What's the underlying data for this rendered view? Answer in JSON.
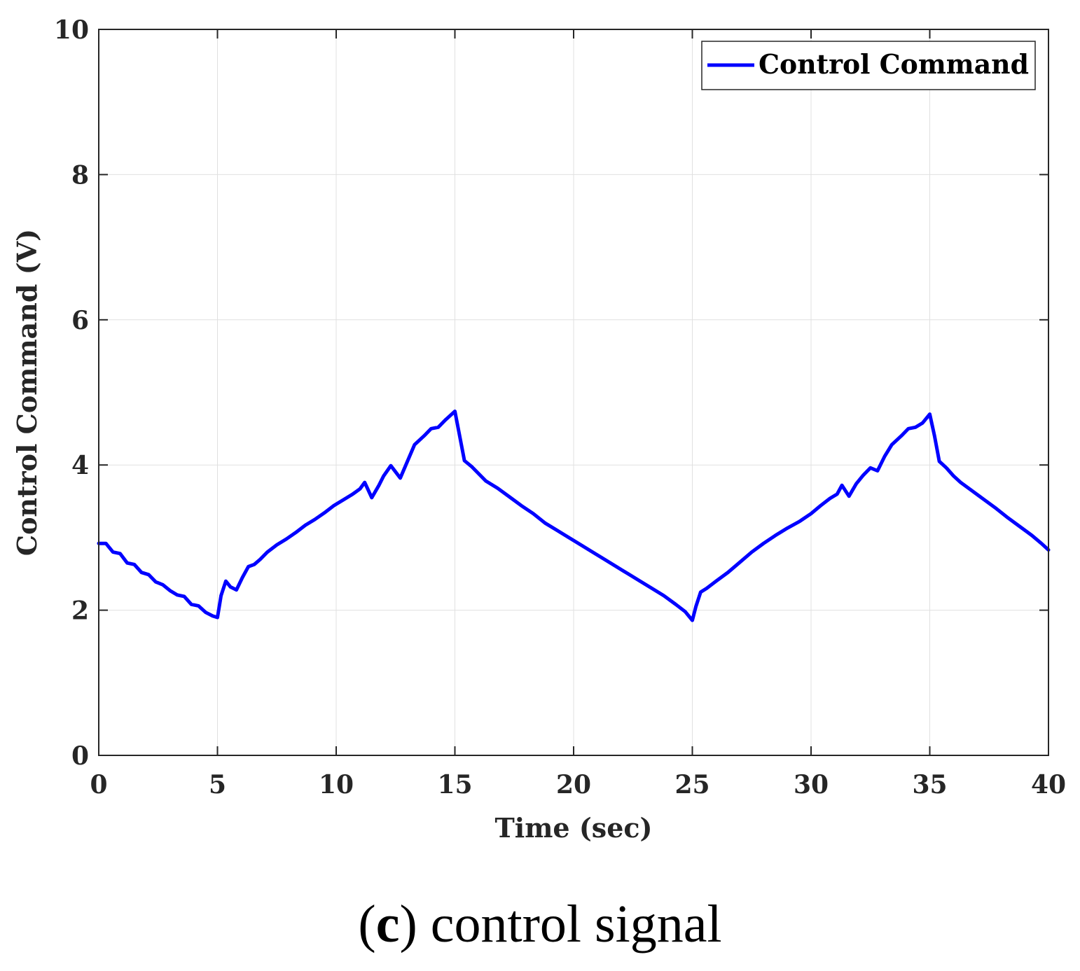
{
  "chart_data": {
    "type": "line",
    "title": "",
    "xlabel": "Time (sec)",
    "ylabel": "Control Command (V)",
    "xlim": [
      0,
      40
    ],
    "ylim": [
      0,
      10
    ],
    "xticks": [
      0,
      5,
      10,
      15,
      20,
      25,
      30,
      35,
      40
    ],
    "yticks": [
      0,
      2,
      4,
      6,
      8,
      10
    ],
    "grid": true,
    "legend": {
      "position": "top-right",
      "entries": [
        "Control Command"
      ]
    },
    "series": [
      {
        "name": "Control Command",
        "color": "#0000ff",
        "x": [
          0,
          0.3,
          0.6,
          0.9,
          1.2,
          1.5,
          1.8,
          2.1,
          2.4,
          2.7,
          3.0,
          3.3,
          3.6,
          3.9,
          4.2,
          4.5,
          4.8,
          5.0,
          5.15,
          5.35,
          5.55,
          5.8,
          6.05,
          6.3,
          6.55,
          6.8,
          7.1,
          7.5,
          7.9,
          8.3,
          8.7,
          9.1,
          9.5,
          9.9,
          10.3,
          10.7,
          11.0,
          11.2,
          11.5,
          11.8,
          12.0,
          12.3,
          12.7,
          13.0,
          13.3,
          13.7,
          14.0,
          14.3,
          14.6,
          15.0,
          15.2,
          15.4,
          15.7,
          16.0,
          16.3,
          16.8,
          17.3,
          17.8,
          18.3,
          18.8,
          19.3,
          19.8,
          20.3,
          20.8,
          21.3,
          21.8,
          22.3,
          22.8,
          23.3,
          23.8,
          24.3,
          24.7,
          25.0,
          25.15,
          25.35,
          25.6,
          26.0,
          26.5,
          27.0,
          27.5,
          28.0,
          28.5,
          29.0,
          29.5,
          30.0,
          30.4,
          30.8,
          31.1,
          31.3,
          31.6,
          31.9,
          32.2,
          32.5,
          32.8,
          33.1,
          33.4,
          33.8,
          34.1,
          34.4,
          34.7,
          35.0,
          35.2,
          35.4,
          35.7,
          36.0,
          36.3,
          36.8,
          37.3,
          37.8,
          38.3,
          38.8,
          39.3,
          39.7,
          40.0
        ],
        "values": [
          2.92,
          2.92,
          2.8,
          2.78,
          2.65,
          2.63,
          2.52,
          2.49,
          2.39,
          2.35,
          2.27,
          2.21,
          2.19,
          2.08,
          2.06,
          1.97,
          1.92,
          1.9,
          2.2,
          2.4,
          2.32,
          2.28,
          2.45,
          2.6,
          2.63,
          2.7,
          2.8,
          2.9,
          2.98,
          3.07,
          3.17,
          3.25,
          3.34,
          3.44,
          3.52,
          3.6,
          3.67,
          3.76,
          3.55,
          3.72,
          3.85,
          3.99,
          3.82,
          4.05,
          4.28,
          4.4,
          4.5,
          4.52,
          4.62,
          4.74,
          4.4,
          4.06,
          3.98,
          3.88,
          3.78,
          3.68,
          3.56,
          3.44,
          3.33,
          3.2,
          3.1,
          3.0,
          2.9,
          2.8,
          2.7,
          2.6,
          2.5,
          2.4,
          2.3,
          2.2,
          2.08,
          1.98,
          1.86,
          2.05,
          2.25,
          2.3,
          2.4,
          2.52,
          2.66,
          2.8,
          2.92,
          3.03,
          3.13,
          3.22,
          3.33,
          3.44,
          3.54,
          3.6,
          3.72,
          3.57,
          3.74,
          3.86,
          3.96,
          3.92,
          4.12,
          4.28,
          4.4,
          4.5,
          4.52,
          4.58,
          4.7,
          4.4,
          4.05,
          3.96,
          3.85,
          3.76,
          3.64,
          3.52,
          3.4,
          3.27,
          3.15,
          3.03,
          2.92,
          2.83
        ]
      }
    ]
  },
  "caption": {
    "open": "(",
    "letter": "c",
    "text": ") control signal"
  }
}
